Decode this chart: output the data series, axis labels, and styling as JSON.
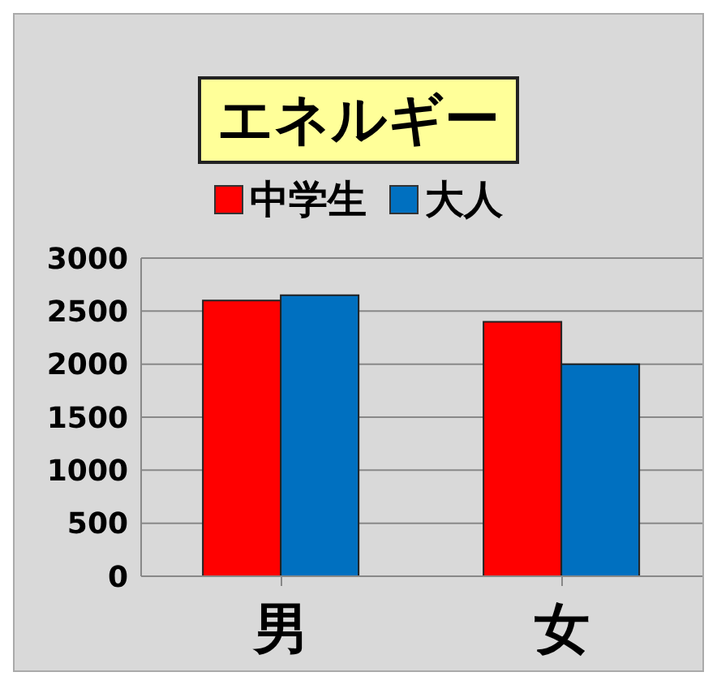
{
  "chart_data": {
    "type": "bar",
    "title": "エネルギー",
    "categories": [
      "男",
      "女"
    ],
    "series": [
      {
        "name": "中学生",
        "color": "#ff0000",
        "values": [
          2600,
          2400
        ]
      },
      {
        "name": "大人",
        "color": "#0070c0",
        "values": [
          2650,
          2000
        ]
      }
    ],
    "ylim": [
      0,
      3000
    ],
    "yticks": [
      0,
      500,
      1000,
      1500,
      2000,
      2500,
      3000
    ],
    "grid": "y",
    "legend": "top"
  }
}
